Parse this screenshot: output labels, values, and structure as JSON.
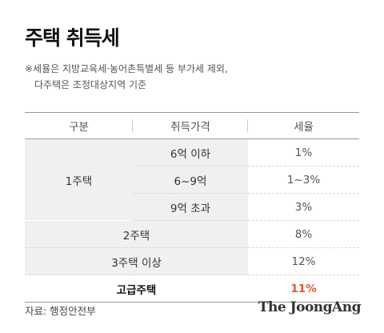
{
  "title": "주택 취득세",
  "note": {
    "line1": "※세율은 지방교육세·농어촌특별세 등 부가세 제외,",
    "line2": "다주택은 조정대상지역 기준"
  },
  "table": {
    "headers": [
      "구분",
      "취득가격",
      "세율"
    ],
    "group_1house": "1주택",
    "rows_1house": [
      {
        "price": "6억 이하",
        "rate": "1%"
      },
      {
        "price": "6~9억",
        "rate": "1~3%"
      },
      {
        "price": "9억 초과",
        "rate": "3%"
      }
    ],
    "row_2house": {
      "label": "2주택",
      "rate": "8%"
    },
    "row_3house": {
      "label": "3주택 이상",
      "rate": "12%"
    },
    "row_luxury": {
      "label": "고급주택",
      "rate": "11%"
    }
  },
  "source": "자료: 행정안전부",
  "logo": "The JoongAng",
  "colors": {
    "highlight": "#e8542b",
    "row_bg": "#f0f0f0"
  }
}
